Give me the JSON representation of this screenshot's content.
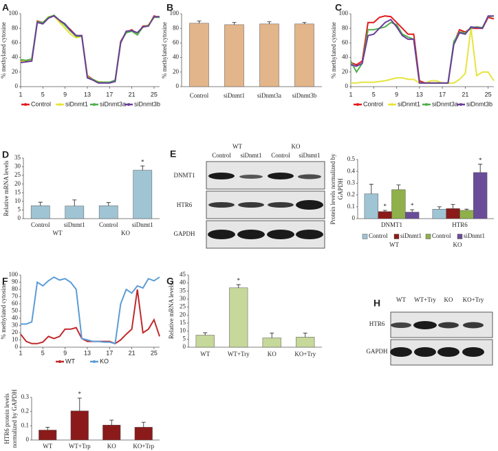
{
  "chart_data": [
    {
      "panel": "A",
      "type": "line",
      "ylabel": [
        "% methylated cytosine"
      ],
      "x": [
        1,
        2,
        3,
        4,
        5,
        6,
        7,
        8,
        9,
        10,
        11,
        12,
        13,
        14,
        15,
        16,
        17,
        18,
        19,
        20,
        21,
        22,
        23,
        24,
        25,
        26
      ],
      "xlim": [
        1,
        26
      ],
      "xticks": [
        1,
        5,
        9,
        13,
        17,
        21,
        25
      ],
      "ylim": [
        0,
        100
      ],
      "yticks": [
        0,
        20,
        40,
        60,
        80,
        100
      ],
      "series": [
        {
          "name": "Control",
          "color": "#e31a1c",
          "values": [
            35,
            35,
            36,
            90,
            88,
            95,
            97,
            90,
            85,
            78,
            70,
            70,
            15,
            10,
            6,
            6,
            6,
            8,
            62,
            75,
            78,
            72,
            83,
            84,
            97,
            95
          ]
        },
        {
          "name": "siDnmt1",
          "color": "#e6e43c",
          "values": [
            34,
            36,
            37,
            88,
            87,
            96,
            97,
            88,
            80,
            72,
            67,
            69,
            14,
            9,
            7,
            6,
            6,
            8,
            60,
            76,
            77,
            73,
            81,
            85,
            96,
            96
          ]
        },
        {
          "name": "siDnmt3a",
          "color": "#4daf4a",
          "values": [
            37,
            36,
            38,
            89,
            88,
            95,
            98,
            91,
            84,
            76,
            69,
            69,
            13,
            10,
            6,
            6,
            6,
            9,
            61,
            74,
            76,
            71,
            82,
            84,
            95,
            95
          ]
        },
        {
          "name": "siDnmt3b",
          "color": "#6a3d9a",
          "values": [
            33,
            34,
            35,
            88,
            86,
            94,
            97,
            91,
            86,
            77,
            70,
            70,
            12,
            9,
            5,
            5,
            5,
            7,
            60,
            76,
            77,
            74,
            82,
            83,
            96,
            96
          ]
        }
      ]
    },
    {
      "panel": "B",
      "type": "bar",
      "ylabel": [
        "% methylated cytosine"
      ],
      "categories": [
        "Control",
        "siDnmt1",
        "siDnmt3a",
        "siDnmt3b"
      ],
      "values": [
        87,
        85,
        86,
        86
      ],
      "errors": [
        3,
        3,
        3,
        2
      ],
      "color": "#e3b58a",
      "ylim": [
        0,
        100
      ],
      "yticks": [
        0,
        20,
        40,
        60,
        80,
        100
      ]
    },
    {
      "panel": "C",
      "type": "line",
      "ylabel": [
        "% methylated cytosine"
      ],
      "x": [
        1,
        2,
        3,
        4,
        5,
        6,
        7,
        8,
        9,
        10,
        11,
        12,
        13,
        14,
        15,
        16,
        17,
        18,
        19,
        20,
        21,
        22,
        23,
        24,
        25,
        26
      ],
      "xlim": [
        1,
        26
      ],
      "xticks": [
        1,
        5,
        9,
        13,
        17,
        21,
        25
      ],
      "ylim": [
        0,
        100
      ],
      "yticks": [
        0,
        20,
        40,
        60,
        80,
        100
      ],
      "series": [
        {
          "name": "Control",
          "color": "#e31a1c",
          "values": [
            33,
            30,
            35,
            88,
            88,
            95,
            97,
            96,
            88,
            80,
            72,
            72,
            8,
            5,
            5,
            5,
            5,
            5,
            60,
            78,
            75,
            80,
            80,
            80,
            95,
            93
          ]
        },
        {
          "name": "siDnmt1",
          "color": "#e6e43c",
          "values": [
            5,
            5,
            6,
            6,
            6,
            7,
            8,
            10,
            12,
            12,
            10,
            10,
            5,
            5,
            8,
            8,
            5,
            5,
            5,
            10,
            18,
            80,
            15,
            20,
            20,
            8
          ]
        },
        {
          "name": "siDnmt3a",
          "color": "#4daf4a",
          "values": [
            35,
            20,
            32,
            78,
            78,
            80,
            82,
            88,
            85,
            72,
            68,
            65,
            5,
            5,
            5,
            5,
            5,
            5,
            62,
            75,
            74,
            80,
            82,
            81,
            96,
            97
          ]
        },
        {
          "name": "siDnmt3b",
          "color": "#6a3d9a",
          "values": [
            30,
            28,
            32,
            70,
            72,
            80,
            88,
            92,
            82,
            70,
            65,
            65,
            5,
            5,
            5,
            5,
            5,
            5,
            58,
            74,
            72,
            82,
            81,
            80,
            97,
            97
          ]
        }
      ]
    },
    {
      "panel": "D",
      "type": "bar",
      "ylabel": [
        "Relative mRNA levels"
      ],
      "categories": [
        "Control",
        "siDnmt1",
        "Control",
        "siDnmt1"
      ],
      "groups": [
        "WT",
        "KO"
      ],
      "values": [
        7.5,
        7.3,
        7.5,
        28
      ],
      "errors": [
        2,
        3.5,
        1.8,
        2.5
      ],
      "significance": [
        null,
        null,
        null,
        "*"
      ],
      "color": "#9fc4d4",
      "ylim": [
        0,
        35
      ],
      "yticks": [
        0,
        5,
        10,
        15,
        20,
        25,
        30,
        35
      ]
    },
    {
      "type": "bar",
      "ylabel": [
        "Protein levels normalized by",
        "GAPDH"
      ],
      "categories": [
        "DNMT1",
        "HTR6"
      ],
      "legend_groups": [
        "WT",
        "KO"
      ],
      "ylim": [
        0,
        0.5
      ],
      "yticks": [
        0,
        0.1,
        0.2,
        0.3,
        0.4,
        0.5
      ],
      "series": [
        {
          "name": "Control",
          "color": "#9fc4d4",
          "values": [
            0.21,
            0.08
          ],
          "errors": [
            0.08,
            0.02
          ],
          "significance": [
            null,
            null
          ]
        },
        {
          "name": "siDnmt1",
          "color": "#8b1a1a",
          "values": [
            0.06,
            0.085
          ],
          "errors": [
            0.01,
            0.035
          ],
          "significance": [
            "*",
            null
          ]
        },
        {
          "name": "Control",
          "color": "#8fb04a",
          "values": [
            0.245,
            0.07
          ],
          "errors": [
            0.04,
            0.01
          ],
          "significance": [
            null,
            null
          ]
        },
        {
          "name": "siDnmt1",
          "color": "#6a4d98",
          "values": [
            0.055,
            0.39
          ],
          "errors": [
            0.02,
            0.07
          ],
          "significance": [
            "*",
            "*"
          ]
        }
      ]
    },
    {
      "panel": "F",
      "type": "line",
      "ylabel": [
        "% methylated cytosine"
      ],
      "x": [
        1,
        2,
        3,
        4,
        5,
        6,
        7,
        8,
        9,
        10,
        11,
        12,
        13,
        14,
        15,
        16,
        17,
        18,
        19,
        20,
        21,
        22,
        23,
        24,
        25,
        26
      ],
      "xlim": [
        1,
        26
      ],
      "xticks": [
        1,
        5,
        9,
        13,
        17,
        21,
        25
      ],
      "ylim": [
        0,
        100
      ],
      "yticks": [
        0,
        10,
        20,
        30,
        40,
        50,
        60,
        70,
        80,
        90,
        100
      ],
      "series": [
        {
          "name": "WT",
          "color": "#c0282a",
          "values": [
            18,
            8,
            5,
            5,
            7,
            15,
            12,
            15,
            25,
            25,
            27,
            12,
            8,
            8,
            8,
            8,
            8,
            5,
            10,
            18,
            25,
            80,
            20,
            25,
            38,
            15
          ]
        },
        {
          "name": "KO",
          "color": "#5b9bd5",
          "values": [
            32,
            32,
            35,
            90,
            85,
            92,
            97,
            93,
            95,
            90,
            80,
            12,
            10,
            8,
            8,
            7,
            7,
            5,
            60,
            80,
            75,
            85,
            82,
            95,
            92,
            97
          ]
        }
      ]
    },
    {
      "panel": "G",
      "type": "bar",
      "ylabel": [
        "Relative mRNA levels"
      ],
      "categories": [
        "WT",
        "WT+Try",
        "KO",
        "KO+Try"
      ],
      "values": [
        7.5,
        37,
        5.8,
        6.3
      ],
      "errors": [
        1.5,
        2,
        3,
        2.5
      ],
      "significance": [
        null,
        "*",
        null,
        null
      ],
      "color": "#c6d89a",
      "ylim": [
        0,
        45
      ],
      "yticks": [
        0,
        5,
        10,
        15,
        20,
        25,
        30,
        35,
        40,
        45
      ]
    },
    {
      "type": "bar",
      "ylabel": [
        "HTR6 protein levels",
        "normalized by GAPDH"
      ],
      "categories": [
        "WT",
        "WT+Trp",
        "KO",
        "KO+Trp"
      ],
      "values": [
        0.07,
        0.205,
        0.105,
        0.09
      ],
      "errors": [
        0.02,
        0.09,
        0.035,
        0.035
      ],
      "significance": [
        null,
        "*",
        null,
        null
      ],
      "color": "#8b1a1a",
      "ylim": [
        0,
        0.3
      ],
      "yticks": [
        0,
        0.1,
        0.2,
        0.3
      ]
    }
  ],
  "blots": {
    "E": {
      "panel": "E",
      "groups": [
        "WT",
        "KO"
      ],
      "lanes": [
        "Control",
        "siDnmt1",
        "Control",
        "siDnmt1"
      ],
      "rows": [
        "DNMT1",
        "HTR6",
        "GAPDH"
      ]
    },
    "H": {
      "panel": "H",
      "lanes": [
        "WT",
        "WT+Try",
        "KO",
        "KO+Try"
      ],
      "rows": [
        "HTR6",
        "GAPDH"
      ]
    }
  }
}
